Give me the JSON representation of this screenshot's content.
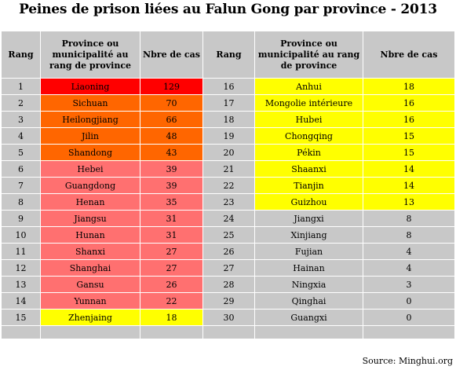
{
  "title": "Peines de prison liées au Falun Gong par province - 2013",
  "headers": {
    "rank": "Rang",
    "province": "Province ou municipalité au rang de province",
    "cases": "Nbre de cas"
  },
  "colors": {
    "gray": "#c8c8c8",
    "red": "#ff0000",
    "orange": "#ff6600",
    "pink": "#ff7070",
    "yellow": "#ffff00"
  },
  "left_rows": [
    {
      "rank": "1",
      "province": "Liaoning",
      "cases": "129",
      "color": "red"
    },
    {
      "rank": "2",
      "province": "Sichuan",
      "cases": "70",
      "color": "orange"
    },
    {
      "rank": "3",
      "province": "Heilongjiang",
      "cases": "66",
      "color": "orange"
    },
    {
      "rank": "4",
      "province": "Jilin",
      "cases": "48",
      "color": "orange"
    },
    {
      "rank": "5",
      "province": "Shandong",
      "cases": "43",
      "color": "orange"
    },
    {
      "rank": "6",
      "province": "Hebei",
      "cases": "39",
      "color": "pink"
    },
    {
      "rank": "7",
      "province": "Guangdong",
      "cases": "39",
      "color": "pink"
    },
    {
      "rank": "8",
      "province": "Henan",
      "cases": "35",
      "color": "pink"
    },
    {
      "rank": "9",
      "province": "Jiangsu",
      "cases": "31",
      "color": "pink"
    },
    {
      "rank": "10",
      "province": "Hunan",
      "cases": "31",
      "color": "pink"
    },
    {
      "rank": "11",
      "province": "Shanxi",
      "cases": "27",
      "color": "pink"
    },
    {
      "rank": "12",
      "province": "Shanghai",
      "cases": "27",
      "color": "pink"
    },
    {
      "rank": "13",
      "province": "Gansu",
      "cases": "26",
      "color": "pink"
    },
    {
      "rank": "14",
      "province": "Yunnan",
      "cases": "22",
      "color": "pink"
    },
    {
      "rank": "15",
      "province": "Zhenjaing",
      "cases": "18",
      "color": "yellow"
    }
  ],
  "right_rows": [
    {
      "rank": "16",
      "province": "Anhui",
      "cases": "18",
      "color": "yellow"
    },
    {
      "rank": "17",
      "province": "Mongolie intérieure",
      "cases": "16",
      "color": "yellow"
    },
    {
      "rank": "18",
      "province": "Hubei",
      "cases": "16",
      "color": "yellow"
    },
    {
      "rank": "19",
      "province": "Chongqing",
      "cases": "15",
      "color": "yellow"
    },
    {
      "rank": "20",
      "province": "Pékin",
      "cases": "15",
      "color": "yellow"
    },
    {
      "rank": "21",
      "province": "Shaanxi",
      "cases": "14",
      "color": "yellow"
    },
    {
      "rank": "22",
      "province": "Tianjin",
      "cases": "14",
      "color": "yellow"
    },
    {
      "rank": "23",
      "province": "Guizhou",
      "cases": "13",
      "color": "yellow"
    },
    {
      "rank": "24",
      "province": "Jiangxi",
      "cases": "8",
      "color": "gray"
    },
    {
      "rank": "25",
      "province": "Xinjiang",
      "cases": "8",
      "color": "gray"
    },
    {
      "rank": "26",
      "province": "Fujian",
      "cases": "4",
      "color": "gray"
    },
    {
      "rank": "27",
      "province": "Hainan",
      "cases": "4",
      "color": "gray"
    },
    {
      "rank": "28",
      "province": "Ningxia",
      "cases": "3",
      "color": "gray"
    },
    {
      "rank": "29",
      "province": "Qinghai",
      "cases": "0",
      "color": "gray"
    },
    {
      "rank": "30",
      "province": "Guangxi",
      "cases": "0",
      "color": "gray"
    }
  ],
  "source": "Source: Minghui.org"
}
